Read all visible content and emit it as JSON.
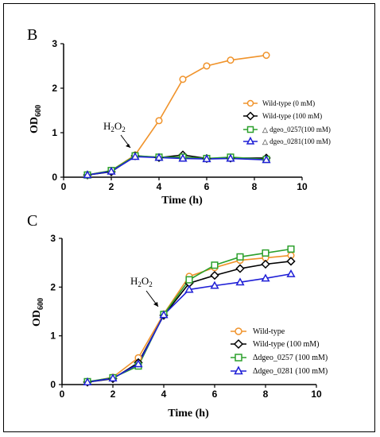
{
  "chart_data": [
    {
      "panel": "B",
      "type": "line",
      "xlabel": "Time (h)",
      "ylabel": "OD600",
      "xlim": [
        0,
        10
      ],
      "ylim": [
        0,
        3
      ],
      "xticks": [
        0,
        2,
        4,
        6,
        8,
        10
      ],
      "yticks": [
        0,
        1,
        2,
        3
      ],
      "annotation": {
        "text": "H2O2",
        "x": 3,
        "y": 0.5
      },
      "legend_position": "right",
      "series": [
        {
          "name": "Wild-type (0 mM)",
          "color": "#f0932b",
          "marker": "circle",
          "x": [
            1,
            2,
            3,
            4,
            5,
            6,
            7,
            8.5
          ],
          "y": [
            0.05,
            0.15,
            0.5,
            1.27,
            2.2,
            2.5,
            2.63,
            2.74
          ]
        },
        {
          "name": "Wild-type (100 mM)",
          "color": "#000000",
          "marker": "diamond",
          "x": [
            1,
            2,
            3,
            4,
            5,
            6,
            7,
            8.5
          ],
          "y": [
            0.05,
            0.12,
            0.48,
            0.44,
            0.5,
            0.42,
            0.43,
            0.43
          ]
        },
        {
          "name": "△ dgeo_0257(100 mM)",
          "color": "#2ca02c",
          "marker": "square",
          "x": [
            1,
            2,
            3,
            4,
            5,
            6,
            7,
            8.5
          ],
          "y": [
            0.05,
            0.15,
            0.48,
            0.45,
            0.45,
            0.42,
            0.45,
            0.4
          ]
        },
        {
          "name": "△ dgeo_0281(100 mM)",
          "color": "#1f1fd6",
          "marker": "triangle",
          "x": [
            1,
            2,
            3,
            4,
            5,
            6,
            7,
            8.5
          ],
          "y": [
            0.05,
            0.13,
            0.46,
            0.44,
            0.42,
            0.41,
            0.42,
            0.39
          ]
        }
      ]
    },
    {
      "panel": "C",
      "type": "line",
      "xlabel": "Time (h)",
      "ylabel": "OD600",
      "xlim": [
        0,
        10
      ],
      "ylim": [
        0,
        3
      ],
      "xticks": [
        0,
        2,
        4,
        6,
        8,
        10
      ],
      "yticks": [
        0,
        1,
        2,
        3
      ],
      "annotation": {
        "text": "H2O2",
        "x": 4,
        "y": 1.45
      },
      "legend_position": "bottom-right",
      "series": [
        {
          "name": "Wild-type",
          "color": "#f0932b",
          "marker": "circle",
          "x": [
            1,
            2,
            3,
            4,
            5,
            6,
            7,
            8,
            9
          ],
          "y": [
            0.05,
            0.15,
            0.55,
            1.45,
            2.22,
            2.4,
            2.55,
            2.6,
            2.65
          ]
        },
        {
          "name": "Wild-type (100 mM)",
          "color": "#000000",
          "marker": "diamond",
          "x": [
            1,
            2,
            3,
            4,
            5,
            6,
            7,
            8,
            9
          ],
          "y": [
            0.05,
            0.12,
            0.45,
            1.42,
            2.08,
            2.24,
            2.38,
            2.47,
            2.53
          ]
        },
        {
          "name": "Δdgeo_0257 (100 mM)",
          "color": "#2ca02c",
          "marker": "square",
          "x": [
            1,
            2,
            3,
            4,
            5,
            6,
            7,
            8,
            9
          ],
          "y": [
            0.06,
            0.14,
            0.38,
            1.44,
            2.15,
            2.45,
            2.62,
            2.7,
            2.78
          ]
        },
        {
          "name": "Δdgeo_0281 (100 mM)",
          "color": "#1f1fd6",
          "marker": "triangle",
          "x": [
            1,
            2,
            3,
            4,
            5,
            6,
            7,
            8,
            9
          ],
          "y": [
            0.05,
            0.13,
            0.42,
            1.43,
            1.95,
            2.03,
            2.1,
            2.18,
            2.27
          ]
        }
      ]
    }
  ]
}
